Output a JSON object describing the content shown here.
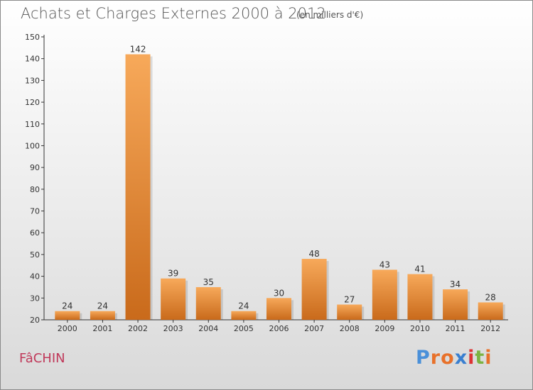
{
  "title": "Achats et Charges Externes 2000 à 2012",
  "subtitle": "(en milliers d'€)",
  "commune": "FâCHIN",
  "logo": {
    "text": "Proxiti",
    "letter_colors": [
      "#4a90d9",
      "#e8712a",
      "#e8712a",
      "#3a7fd0",
      "#d33",
      "#7cb342",
      "#e8712a"
    ]
  },
  "colors": {
    "bar_top": "#f7a95a",
    "bar_bottom": "#c96a1b",
    "commune_text": "#c0395a"
  },
  "chart_data": {
    "type": "bar",
    "categories": [
      "2000",
      "2001",
      "2002",
      "2003",
      "2004",
      "2005",
      "2006",
      "2007",
      "2008",
      "2009",
      "2010",
      "2011",
      "2012"
    ],
    "values": [
      24,
      24,
      142,
      39,
      35,
      24,
      30,
      48,
      27,
      43,
      41,
      34,
      28
    ],
    "ylim": [
      20,
      150
    ],
    "yticks": [
      20,
      30,
      40,
      50,
      60,
      70,
      80,
      90,
      100,
      110,
      120,
      130,
      140,
      150
    ],
    "grid": false,
    "data_labels": true
  }
}
